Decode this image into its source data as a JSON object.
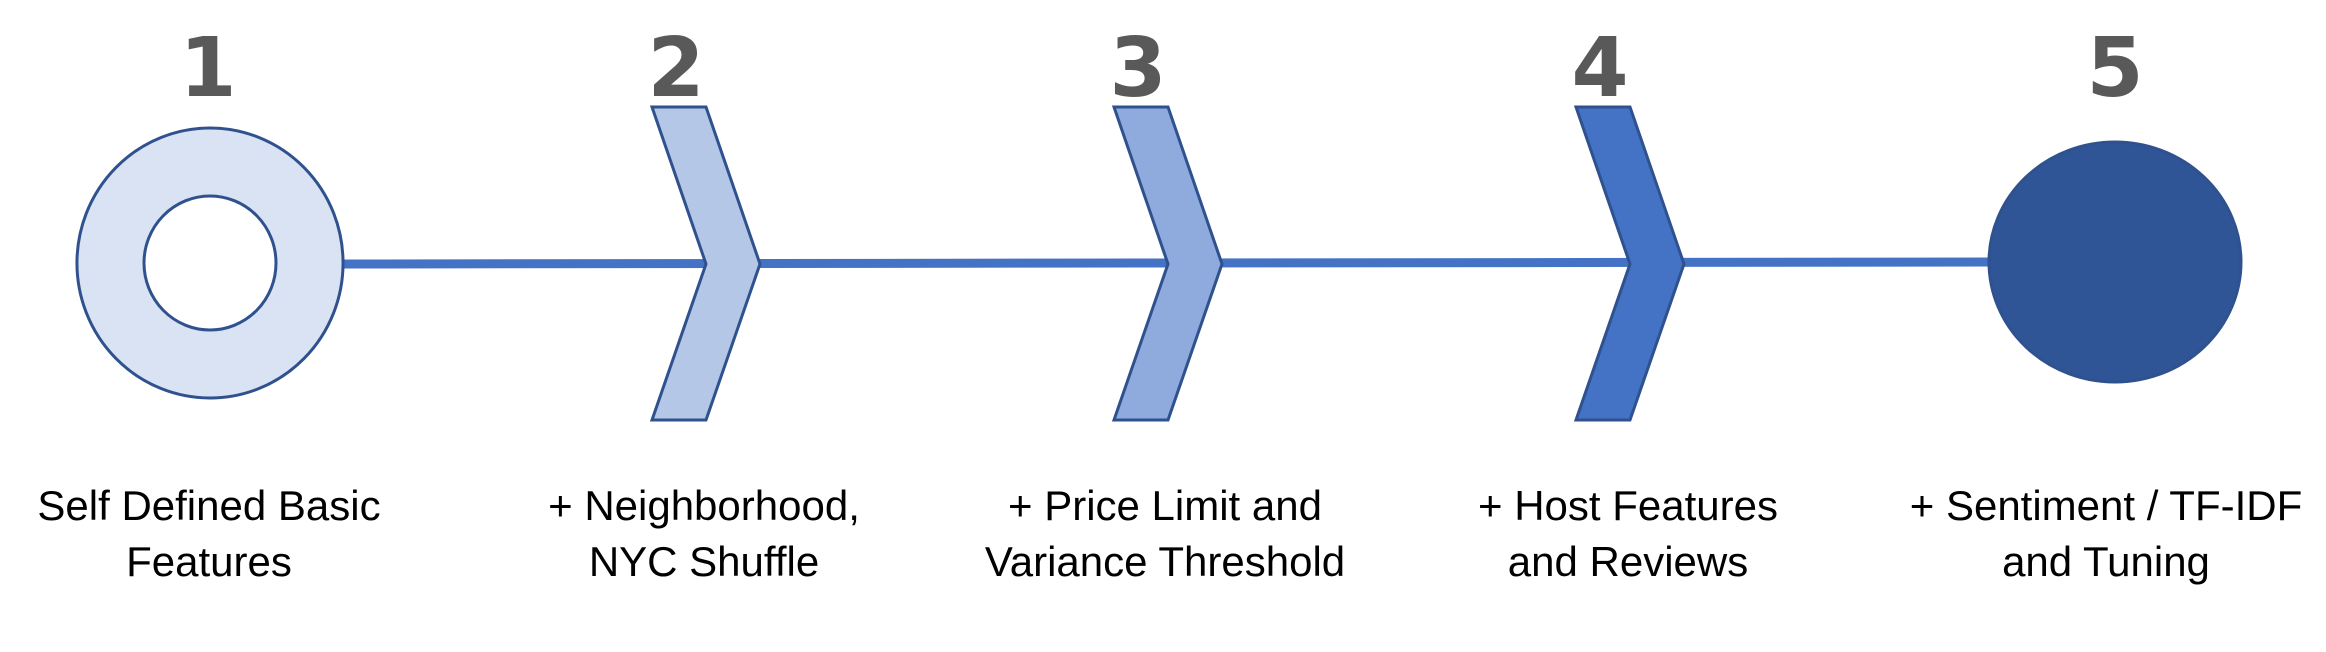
{
  "steps": [
    {
      "number": "1",
      "label_lines": [
        "Self Defined Basic",
        "Features"
      ],
      "marker": "ring-marker"
    },
    {
      "number": "2",
      "label_lines": [
        "+ Neighborhood,",
        "NYC Shuffle"
      ],
      "marker": "chevron-marker"
    },
    {
      "number": "3",
      "label_lines": [
        "+ Price Limit and",
        "Variance Threshold"
      ],
      "marker": "chevron-marker"
    },
    {
      "number": "4",
      "label_lines": [
        "+ Host Features",
        "and Reviews"
      ],
      "marker": "chevron-marker"
    },
    {
      "number": "5",
      "label_lines": [
        "+ Sentiment / TF-IDF",
        "and Tuning"
      ],
      "marker": "filled-circle-marker"
    }
  ],
  "colors": {
    "connector": "#4472C4",
    "outline": "#2F528F",
    "step1_fill": "#DAE3F3",
    "step2_fill": "#B4C7E7",
    "step3_fill": "#8FAADC",
    "step4_fill": "#4472C4",
    "step5_fill": "#2F5597",
    "number_text": "#595959"
  }
}
